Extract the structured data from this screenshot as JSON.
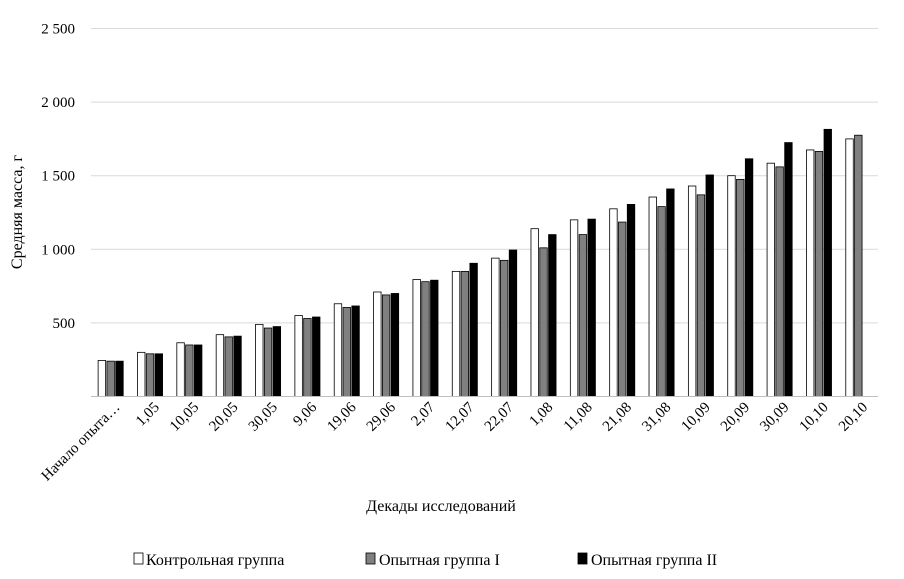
{
  "chart_data": {
    "type": "bar",
    "title": "",
    "xlabel": "Декады исследований",
    "ylabel": "Средняя масса,  г",
    "ylim": [
      0,
      2500
    ],
    "yticks": [
      500,
      1000,
      1500,
      2000,
      2500
    ],
    "ytick_labels": [
      "500",
      "1 000",
      "1 500",
      "2 000",
      "2 500"
    ],
    "grid": true,
    "legend_position": "bottom",
    "categories": [
      "Начало опыта…",
      "1,05",
      "10,05",
      "20,05",
      "30,05",
      "9,06",
      "19,06",
      "29,06",
      "2,07",
      "12,07",
      "22,07",
      "1,08",
      "11,08",
      "21,08",
      "31,08",
      "10,09",
      "20,09",
      "30,09",
      "10,10",
      "20,10"
    ],
    "series": [
      {
        "name": "Контрольная группа",
        "color": "#ffffff",
        "values": [
          245,
          300,
          365,
          420,
          490,
          550,
          630,
          710,
          795,
          850,
          940,
          1140,
          1200,
          1275,
          1355,
          1430,
          1500,
          1585,
          1675,
          1750
        ]
      },
      {
        "name": "Опытная группа I",
        "color": "#808080",
        "values": [
          240,
          290,
          350,
          405,
          465,
          530,
          605,
          690,
          780,
          850,
          925,
          1010,
          1100,
          1185,
          1290,
          1370,
          1475,
          1560,
          1665,
          1775
        ]
      },
      {
        "name": "Опытная группа II",
        "color": "#000000",
        "values": [
          240,
          290,
          350,
          410,
          475,
          540,
          615,
          700,
          790,
          905,
          995,
          1100,
          1205,
          1305,
          1410,
          1505,
          1615,
          1725,
          1815,
          null
        ]
      }
    ]
  }
}
